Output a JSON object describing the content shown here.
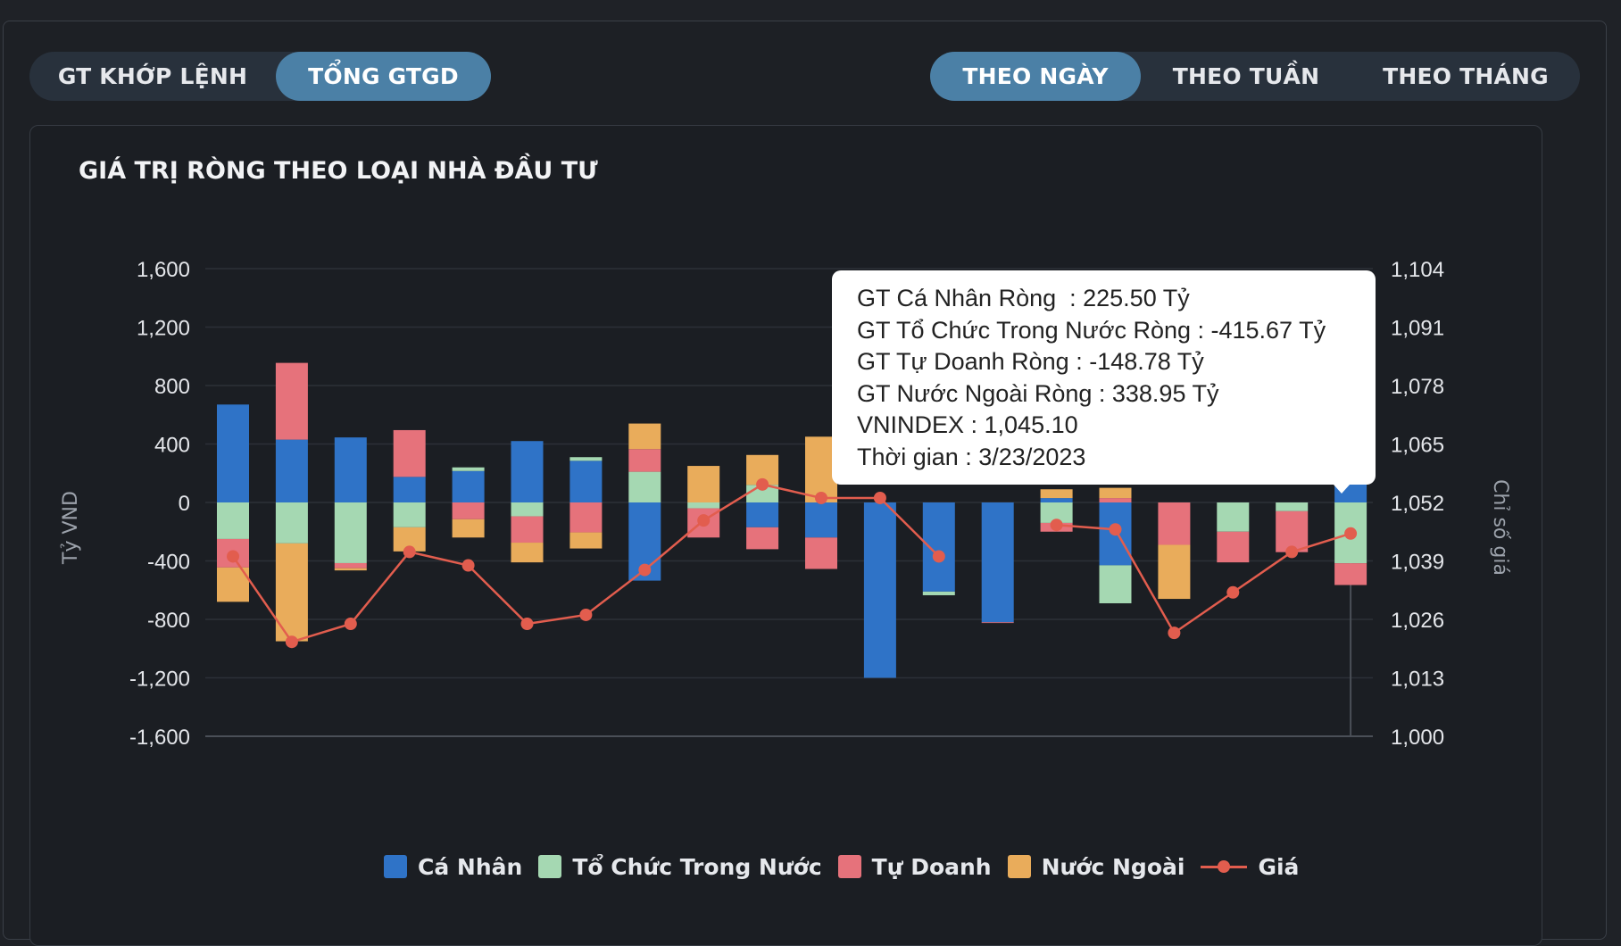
{
  "tabs_left": [
    {
      "label": "GT KHỚP LỆNH",
      "active": false
    },
    {
      "label": "TỔNG GTGD",
      "active": true
    }
  ],
  "tabs_right": [
    {
      "label": "THEO NGÀY",
      "active": true
    },
    {
      "label": "THEO TUẦN",
      "active": false
    },
    {
      "label": "THEO THÁNG",
      "active": false
    }
  ],
  "card_title": "GIÁ TRỊ RÒNG THEO LOẠI NHÀ ĐẦU TƯ",
  "tooltip": {
    "lines": [
      "GT Cá Nhân Ròng  : 225.50 Tỷ",
      "GT Tổ Chức Trong Nước Ròng : -415.67 Tỷ",
      "GT Tự Doanh Ròng : -148.78 Tỷ",
      "GT Nước Ngoài Ròng : 338.95 Tỷ",
      "VNINDEX : 1,045.10",
      "Thời gian : 3/23/2023"
    ]
  },
  "colors": {
    "ca_nhan": "#2f73c7",
    "to_chuc": "#a5d8b2",
    "tu_doanh": "#e6727b",
    "nuoc_ngoai": "#e9ac5b",
    "gia": "#e25d4e"
  },
  "chart_data": {
    "type": "bar",
    "stacked": true,
    "ylabel": "Tỷ VND",
    "y2label": "Chỉ số giá",
    "ylim": [
      -1600,
      1600
    ],
    "y_ticks": [
      "1,600",
      "1,200",
      "800",
      "400",
      "0",
      "-400",
      "-800",
      "-1,200",
      "-1,600"
    ],
    "y2lim": [
      1000,
      1104
    ],
    "y2_ticks": [
      "1,104",
      "1,091",
      "1,078",
      "1,065",
      "1,052",
      "1,039",
      "1,026",
      "1,013",
      "1,000"
    ],
    "legend_position": "bottom",
    "series": [
      {
        "name": "Cá Nhân",
        "color_key": "ca_nhan",
        "values": [
          670,
          430,
          445,
          175,
          215,
          420,
          285,
          -535,
          null,
          -170,
          -240,
          -1200,
          -610,
          -820,
          30,
          -430,
          null,
          null,
          null,
          225
        ]
      },
      {
        "name": "Tổ Chức Trong Nước",
        "color_key": "to_chuc",
        "values": [
          -250,
          -280,
          -415,
          -170,
          25,
          -95,
          25,
          210,
          -40,
          120,
          null,
          null,
          -25,
          null,
          -140,
          -260,
          null,
          -200,
          -60,
          -416
        ]
      },
      {
        "name": "Tự Doanh",
        "color_key": "tu_doanh",
        "values": [
          -195,
          525,
          -35,
          320,
          -115,
          -180,
          -205,
          155,
          -200,
          -150,
          -215,
          null,
          null,
          -5,
          -60,
          30,
          -290,
          -210,
          -280,
          -149
        ]
      },
      {
        "name": "Nước Ngoài",
        "color_key": "nuoc_ngoai",
        "values": [
          -235,
          -670,
          -15,
          -165,
          -125,
          -135,
          -110,
          175,
          250,
          205,
          450,
          null,
          null,
          null,
          60,
          70,
          -370,
          null,
          null,
          339
        ]
      }
    ],
    "line": {
      "name": "Giá",
      "color_key": "gia",
      "values": [
        1040,
        1021,
        1025,
        1041,
        1038,
        1025,
        1027,
        1037,
        1048,
        1056,
        1053,
        1053,
        1040,
        null,
        1047,
        1046,
        1023,
        1032,
        1041,
        1045.1
      ]
    }
  }
}
